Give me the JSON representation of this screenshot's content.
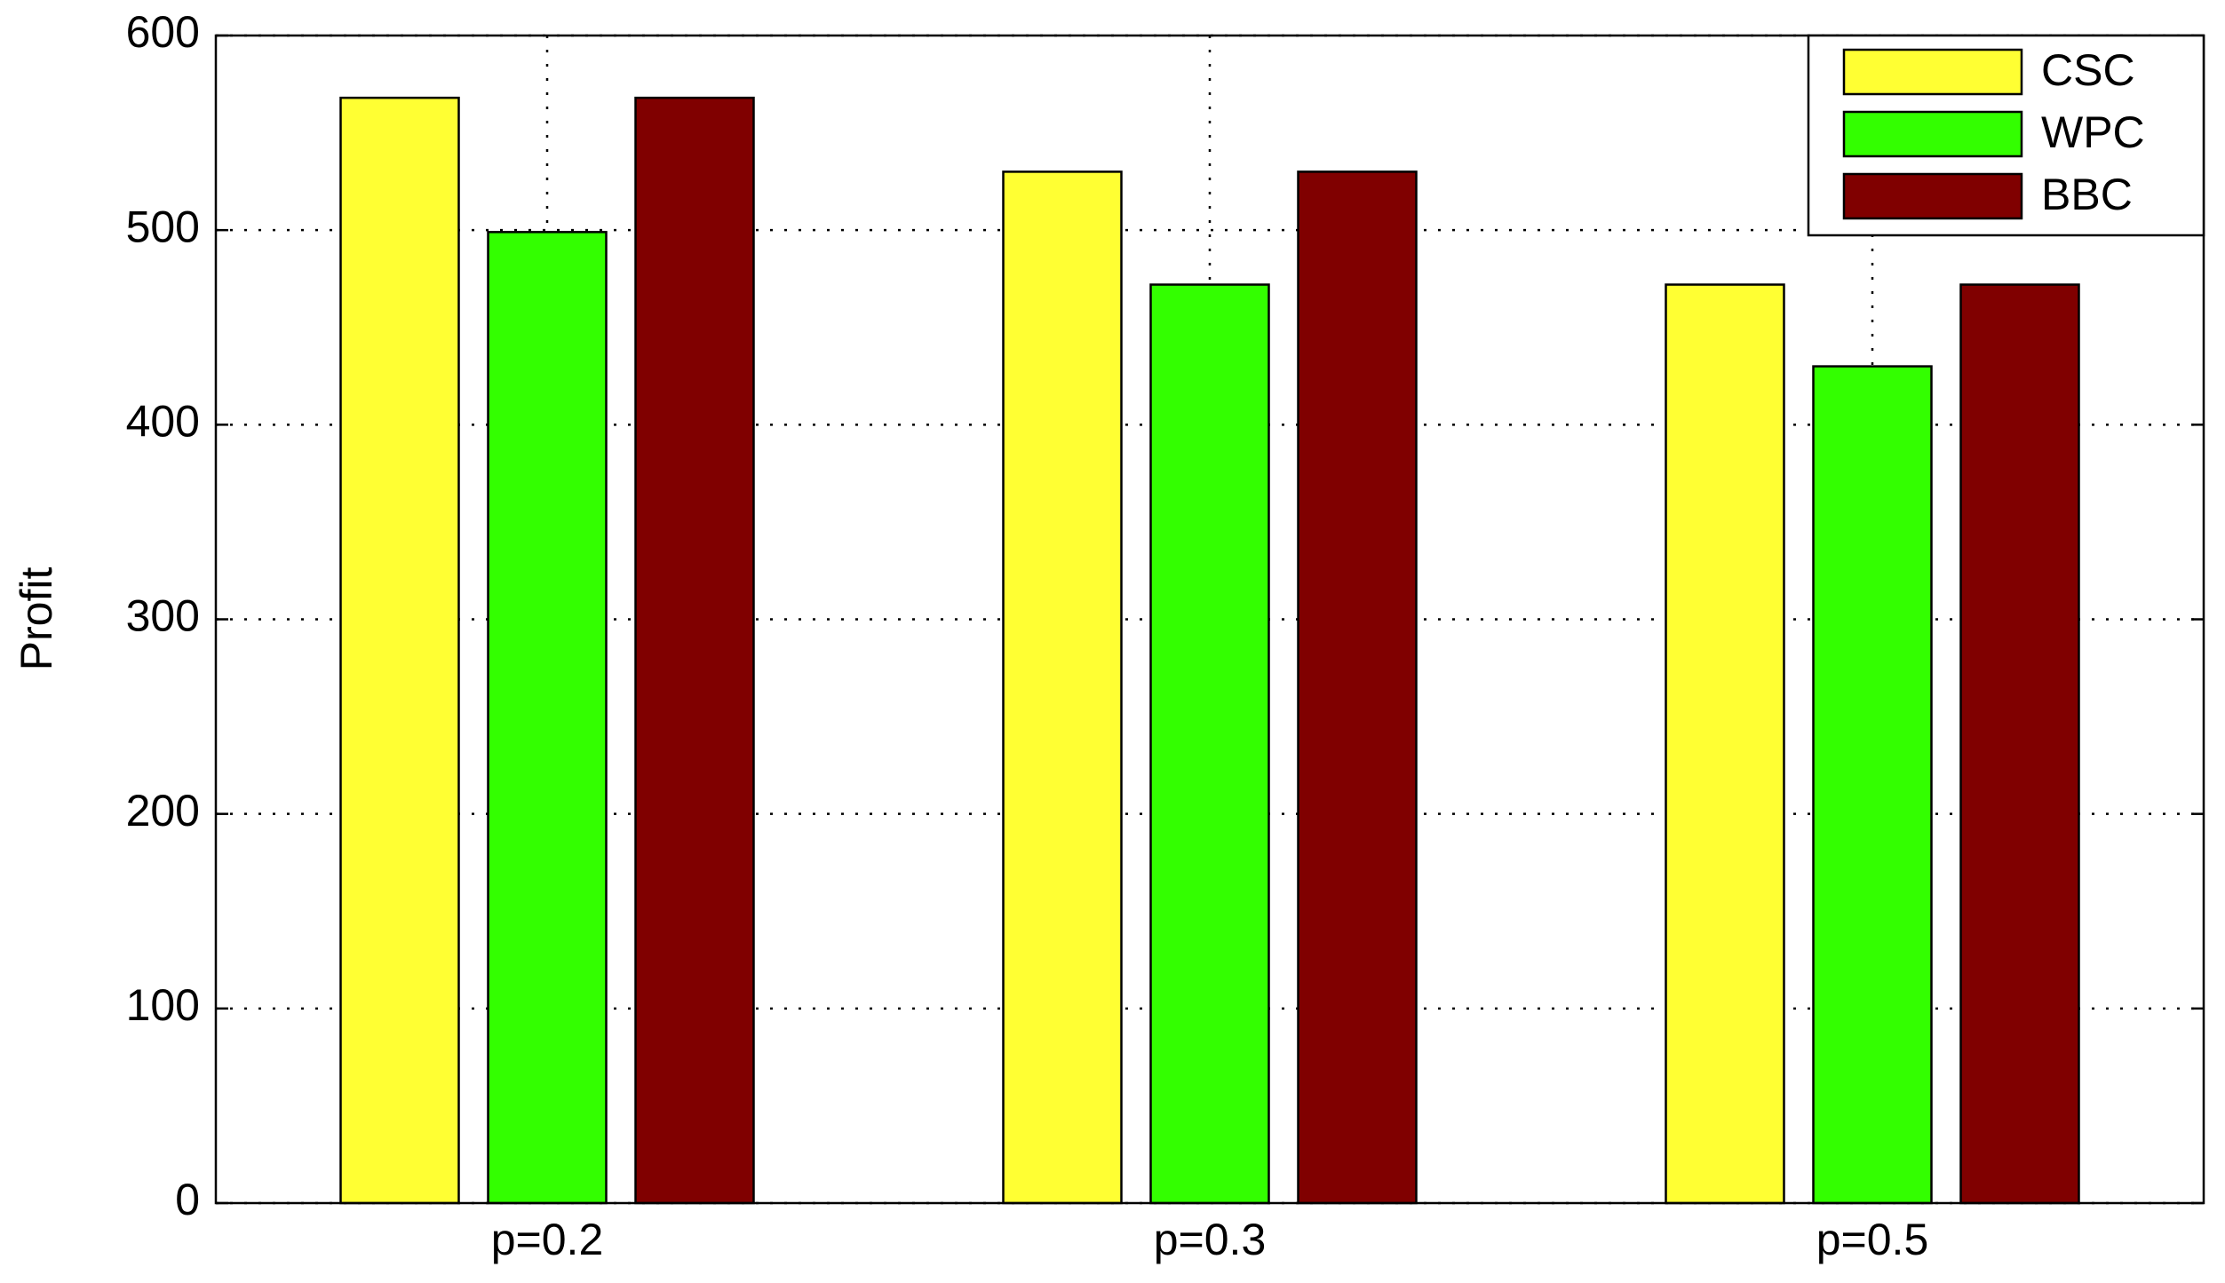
{
  "chart_data": {
    "type": "bar",
    "y_label": "Profit",
    "categories": [
      "p=0.2",
      "p=0.3",
      "p=0.5"
    ],
    "series": [
      {
        "name": "CSC",
        "color": "#ffff33",
        "values": [
          568,
          530,
          472
        ]
      },
      {
        "name": "WPC",
        "color": "#33ff00",
        "values": [
          499,
          472,
          430
        ]
      },
      {
        "name": "BBC",
        "color": "#800000",
        "values": [
          568,
          530,
          472
        ]
      }
    ],
    "ylim": [
      0,
      600
    ],
    "yticks": [
      0,
      100,
      200,
      300,
      400,
      500,
      600
    ],
    "grid": true,
    "legend": "top-right"
  }
}
